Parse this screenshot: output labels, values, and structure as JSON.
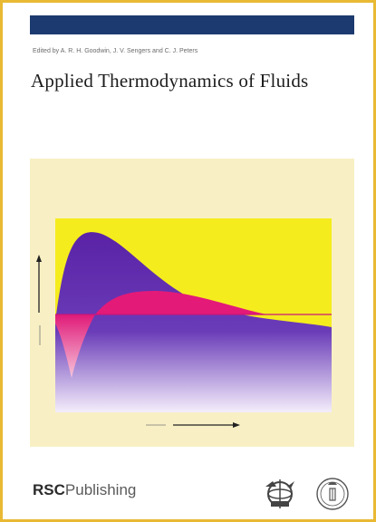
{
  "cover": {
    "editors": "Edited by A. R. H. Goodwin, J. V. Sengers and C. J. Peters",
    "title": "Applied Thermodynamics of Fluids",
    "publisher_bold": "RSC",
    "publisher_rest": "Publishing",
    "colors": {
      "border": "#e9b934",
      "top_bar": "#1c3a6f",
      "panel": "#f8f0c4",
      "plot_yellow": "#f5ec1e",
      "curve_purple": "#5b24a8",
      "curve_magenta": "#e0206e"
    },
    "icons": [
      "globe-emblem-icon",
      "circular-seal-icon"
    ]
  }
}
